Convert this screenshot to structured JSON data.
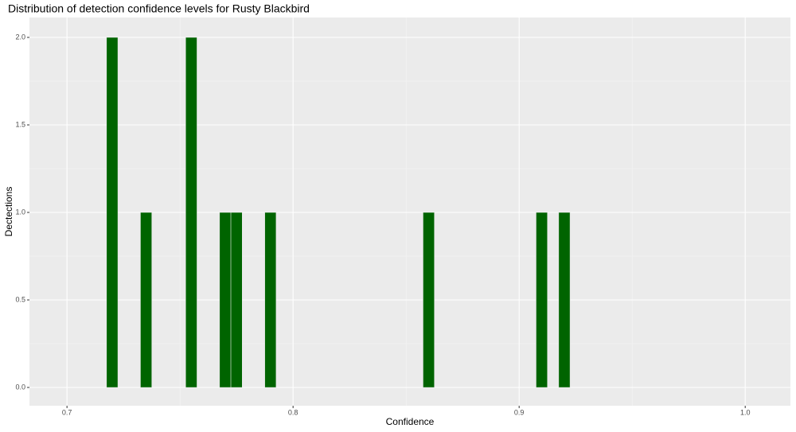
{
  "chart_data": {
    "type": "histogram",
    "title": "Distribution of detection confidence levels for Rusty Blackbird",
    "x_label": "Confidence",
    "y_label": "Dectections",
    "bins": [
      0.7175,
      0.7225,
      0.7275,
      0.7325,
      0.7375,
      0.7425,
      0.7475,
      0.7525,
      0.7575,
      0.7625,
      0.7675,
      0.7725,
      0.7775,
      0.7825,
      0.7875,
      0.7925,
      0.7975,
      0.8025,
      0.8075,
      0.8125,
      0.8175,
      0.8225,
      0.8275,
      0.8325,
      0.8375,
      0.8425,
      0.8475,
      0.8525,
      0.8575,
      0.8625,
      0.8675,
      0.8725,
      0.8775,
      0.8825,
      0.8875,
      0.8925,
      0.8975,
      0.9025,
      0.9075,
      0.9125,
      0.9175,
      0.9225
    ],
    "counts": [
      2,
      0,
      0,
      1,
      0,
      0,
      0,
      2,
      0,
      0,
      1,
      1,
      0,
      0,
      1,
      0,
      0,
      0,
      0,
      0,
      0,
      0,
      0,
      0,
      0,
      0,
      0,
      0,
      1,
      0,
      0,
      0,
      0,
      0,
      0,
      0,
      0,
      0,
      1,
      0,
      1
    ],
    "color": "#006400",
    "xlim": [
      0.6834,
      1.02
    ],
    "xticks": [
      0.7,
      0.8,
      0.9,
      {
        "value": 1.0,
        "label": "1.0"
      }
    ],
    "ylim": [
      -0.1045,
      2.1136
    ],
    "yticks": [
      {
        "value": 0,
        "label": "0.0"
      },
      {
        "value": 0.5,
        "label": "0.5"
      },
      {
        "value": 1,
        "label": "1.0"
      },
      {
        "value": 1.5,
        "label": "1.5"
      },
      {
        "value": 2,
        "label": "2.0"
      }
    ],
    "grid": true
  }
}
